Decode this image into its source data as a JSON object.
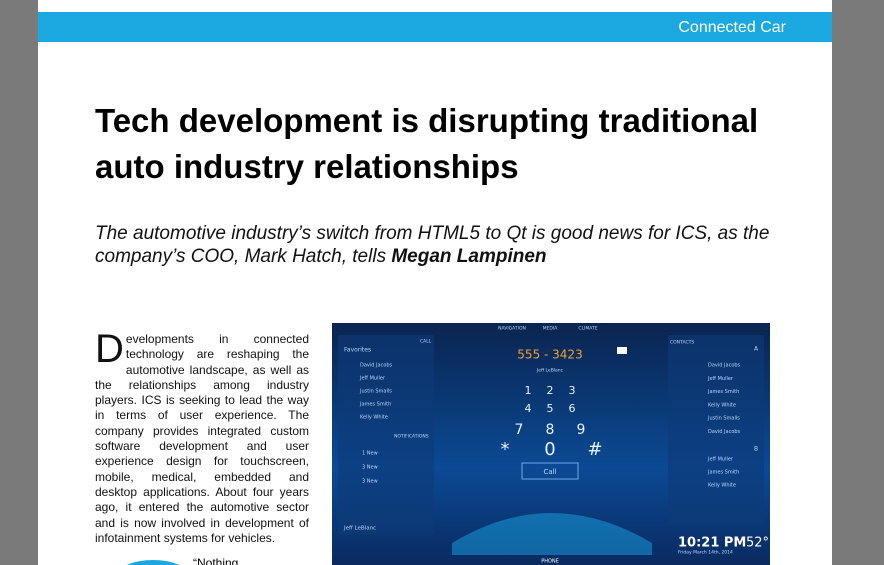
{
  "header": {
    "section": "Connected Car"
  },
  "article": {
    "title": "Tech development is disrupting traditional auto industry relationships",
    "standfirst": "The automotive industry’s switch from HTML5 to Qt is good news for ICS, as the company’s COO, Mark Hatch, tells",
    "byline": "Megan Lampinen",
    "drop_cap": "D",
    "body": "evelopments in connected technology are reshaping the automotive landscape, as well as the relationships among industry players. ICS is seeking to lead the way in terms of user experience. The company provides integrated custom software development and user experience design for touchscreen, mobile, medical, embedded and desktop applications. About four years ago, it entered the automotive sector and is now involved in development of infotainment systems for vehicles.",
    "next_paragraph": "“Nothing"
  },
  "image": {
    "tabs": [
      "NAVIGATION",
      "MEDIA",
      "CLIMATE"
    ],
    "call_label": "CALL",
    "favorites_label": "Favorites",
    "favorites": [
      "David Jacobs",
      "Jeff Muller",
      "Justin Smalls",
      "James Smith",
      "Kelly White"
    ],
    "notifications_label": "NOTIFICATIONS",
    "notifications": [
      "1 New",
      "3 New",
      "3 New"
    ],
    "caller": "Jeff LeBlanc",
    "dial_number": "555 - 3423",
    "dial_name": "Jeff LeBlanc",
    "keypad": [
      "1",
      "2",
      "3",
      "4",
      "5",
      "6",
      "7",
      "8",
      "9",
      "*",
      "0",
      "#"
    ],
    "call_button": "Call",
    "contacts_label": "CONTACTS",
    "section_a": "A",
    "contacts_a": [
      "David Jacobs",
      "Jeff Muller",
      "James Smith",
      "Kelly White",
      "Justin Smalls",
      "David Jacobs"
    ],
    "section_b": "B",
    "contacts_b": [
      "Jeff Muller",
      "James Smith",
      "Kelly White"
    ],
    "time": "10:21 PM",
    "temperature": "52°",
    "date": "Friday March 14th, 2014",
    "bottom_tab": "PHONE"
  }
}
